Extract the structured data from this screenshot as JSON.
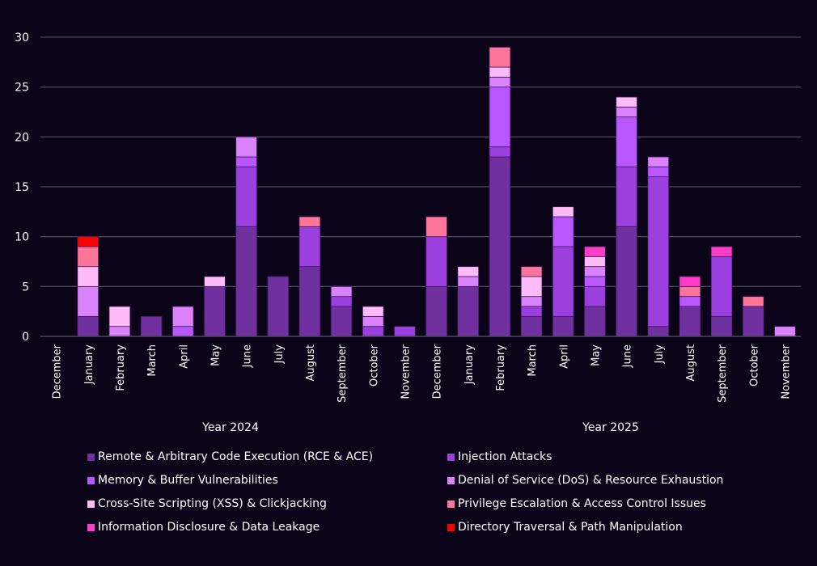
{
  "chart_data": {
    "type": "bar",
    "stacked": true,
    "title": "",
    "xlabel": "",
    "ylabel": "",
    "ylim": [
      0,
      30
    ],
    "yticks": [
      0,
      5,
      10,
      15,
      20,
      25,
      30
    ],
    "grid": true,
    "legend_position": "bottom",
    "groups": [
      {
        "label": "Year 2024",
        "categories": [
          "December",
          "January",
          "February",
          "March",
          "April",
          "May",
          "June",
          "July",
          "August",
          "September",
          "October",
          "November"
        ]
      },
      {
        "label": "Year 2025",
        "categories": [
          "December",
          "January",
          "February",
          "March",
          "April",
          "May",
          "June",
          "July",
          "August",
          "September",
          "October",
          "November"
        ]
      }
    ],
    "categories": [
      "December",
      "January",
      "February",
      "March",
      "April",
      "May",
      "June",
      "July",
      "August",
      "September",
      "October",
      "November",
      "December",
      "January",
      "February",
      "March",
      "April",
      "May",
      "June",
      "July",
      "August",
      "September",
      "October",
      "November"
    ],
    "series": [
      {
        "name": "Remote & Arbitrary Code Execution (RCE & ACE)",
        "color": "#7030a0",
        "values": [
          0,
          2,
          0,
          2,
          0,
          5,
          11,
          6,
          7,
          3,
          0,
          0,
          5,
          5,
          18,
          2,
          2,
          3,
          11,
          1,
          3,
          2,
          3,
          0
        ]
      },
      {
        "name": "Injection Attacks",
        "color": "#9b3fdf",
        "values": [
          0,
          0,
          0,
          0,
          0,
          0,
          6,
          0,
          4,
          1,
          1,
          1,
          5,
          0,
          1,
          1,
          7,
          2,
          6,
          15,
          0,
          6,
          0,
          0
        ]
      },
      {
        "name": "Memory & Buffer Vulnerabilities",
        "color": "#b957ff",
        "values": [
          0,
          0,
          0,
          0,
          1,
          0,
          1,
          0,
          0,
          0,
          0,
          0,
          0,
          0,
          6,
          0,
          3,
          1,
          5,
          1,
          1,
          0,
          0,
          0
        ]
      },
      {
        "name": "Denial of Service (DoS) & Resource Exhaustion",
        "color": "#da82fb",
        "values": [
          0,
          3,
          1,
          0,
          2,
          0,
          2,
          0,
          0,
          1,
          1,
          0,
          0,
          1,
          1,
          1,
          0,
          1,
          1,
          1,
          0,
          0,
          0,
          1
        ]
      },
      {
        "name": "Cross-Site Scripting (XSS) & Clickjacking",
        "color": "#ffbaf8",
        "values": [
          0,
          2,
          2,
          0,
          0,
          1,
          0,
          0,
          0,
          0,
          1,
          0,
          0,
          1,
          1,
          2,
          1,
          1,
          1,
          0,
          0,
          0,
          0,
          0
        ]
      },
      {
        "name": "Privilege Escalation & Access Control Issues",
        "color": "#ff7499",
        "values": [
          0,
          2,
          0,
          0,
          0,
          0,
          0,
          0,
          1,
          0,
          0,
          0,
          2,
          0,
          2,
          1,
          0,
          0,
          0,
          0,
          1,
          0,
          1,
          0
        ]
      },
      {
        "name": "Information Disclosure & Data Leakage",
        "color": "#ff3dc6",
        "values": [
          0,
          0,
          0,
          0,
          0,
          0,
          0,
          0,
          0,
          0,
          0,
          0,
          0,
          0,
          0,
          0,
          0,
          1,
          0,
          0,
          1,
          1,
          0,
          0
        ]
      },
      {
        "name": "Directory Traversal & Path Manipulation",
        "color": "#ff0000",
        "values": [
          0,
          1,
          0,
          0,
          0,
          0,
          0,
          0,
          0,
          0,
          0,
          0,
          0,
          0,
          0,
          0,
          0,
          0,
          0,
          0,
          0,
          0,
          0,
          0
        ]
      }
    ]
  },
  "legend": {
    "items": [
      {
        "label": "Remote & Arbitrary Code Execution (RCE & ACE)",
        "color": "#7030a0"
      },
      {
        "label": "Injection Attacks",
        "color": "#9b3fdf"
      },
      {
        "label": "Memory & Buffer Vulnerabilities",
        "color": "#b957ff"
      },
      {
        "label": "Denial of Service (DoS) & Resource Exhaustion",
        "color": "#da82fb"
      },
      {
        "label": "Cross-Site Scripting (XSS) & Clickjacking",
        "color": "#ffbaf8"
      },
      {
        "label": "Privilege Escalation & Access Control Issues",
        "color": "#ff7499"
      },
      {
        "label": "Information Disclosure & Data Leakage",
        "color": "#ff3dc6"
      },
      {
        "label": "Directory Traversal & Path Manipulation",
        "color": "#ff0000"
      }
    ]
  },
  "theme": {
    "background": "#0b0418",
    "gridline": "#4a4658",
    "axis": "#4a4658",
    "text": "#ffffff",
    "bar_edge": "#3a1a5a"
  }
}
